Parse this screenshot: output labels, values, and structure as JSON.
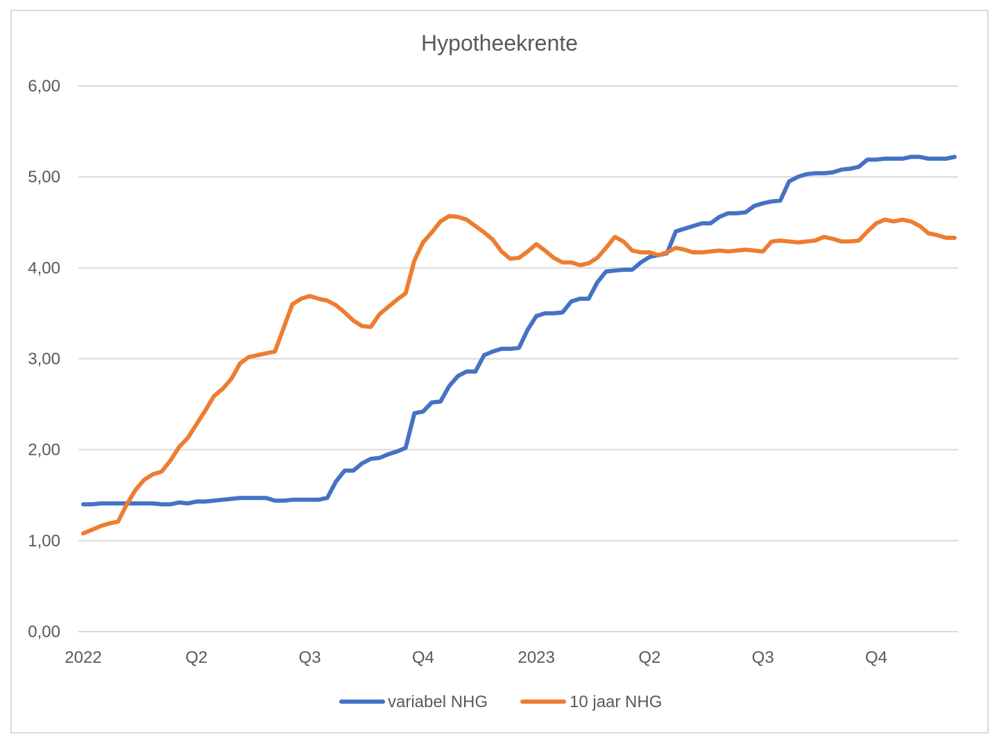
{
  "chart_data": {
    "type": "line",
    "title": "Hypotheekrente",
    "xlabel": "",
    "ylabel": "",
    "ylim": [
      0,
      6
    ],
    "y_ticks": [
      0,
      1,
      2,
      3,
      4,
      5,
      6
    ],
    "y_tick_labels": [
      "0,00",
      "1,00",
      "2,00",
      "3,00",
      "4,00",
      "5,00",
      "6,00"
    ],
    "x_tick_labels": [
      {
        "label": "2022",
        "index": 0
      },
      {
        "label": "Q2",
        "index": 13
      },
      {
        "label": "Q3",
        "index": 26
      },
      {
        "label": "Q4",
        "index": 39
      },
      {
        "label": "2023",
        "index": 52
      },
      {
        "label": "Q2",
        "index": 65
      },
      {
        "label": "Q3",
        "index": 78
      },
      {
        "label": "Q4",
        "index": 91
      }
    ],
    "x_count": 101,
    "grid": true,
    "legend_position": "bottom",
    "series": [
      {
        "name": "variabel NHG",
        "color": "#4472C4",
        "values": [
          1.4,
          1.4,
          1.41,
          1.41,
          1.41,
          1.41,
          1.41,
          1.41,
          1.41,
          1.4,
          1.4,
          1.42,
          1.41,
          1.43,
          1.43,
          1.44,
          1.45,
          1.46,
          1.47,
          1.47,
          1.47,
          1.47,
          1.44,
          1.44,
          1.45,
          1.45,
          1.45,
          1.45,
          1.47,
          1.65,
          1.77,
          1.77,
          1.85,
          1.9,
          1.91,
          1.95,
          1.98,
          2.02,
          2.4,
          2.42,
          2.52,
          2.53,
          2.7,
          2.81,
          2.86,
          2.86,
          3.04,
          3.08,
          3.11,
          3.11,
          3.12,
          3.32,
          3.47,
          3.5,
          3.5,
          3.51,
          3.63,
          3.66,
          3.66,
          3.84,
          3.96,
          3.97,
          3.98,
          3.98,
          4.06,
          4.12,
          4.14,
          4.16,
          4.4,
          4.43,
          4.46,
          4.49,
          4.49,
          4.56,
          4.6,
          4.6,
          4.61,
          4.68,
          4.71,
          4.73,
          4.74,
          4.95,
          5.0,
          5.03,
          5.04,
          5.04,
          5.05,
          5.08,
          5.09,
          5.11,
          5.19,
          5.19,
          5.2,
          5.2,
          5.2,
          5.22,
          5.22,
          5.2,
          5.2,
          5.2,
          5.22
        ]
      },
      {
        "name": "10 jaar NHG",
        "color": "#ED7D31",
        "values": [
          1.08,
          1.12,
          1.16,
          1.19,
          1.21,
          1.4,
          1.56,
          1.67,
          1.73,
          1.76,
          1.88,
          2.03,
          2.13,
          2.28,
          2.43,
          2.59,
          2.67,
          2.78,
          2.95,
          3.02,
          3.04,
          3.06,
          3.08,
          3.34,
          3.6,
          3.66,
          3.69,
          3.66,
          3.64,
          3.59,
          3.51,
          3.42,
          3.36,
          3.35,
          3.49,
          3.57,
          3.65,
          3.72,
          4.08,
          4.28,
          4.39,
          4.51,
          4.57,
          4.56,
          4.53,
          4.46,
          4.39,
          4.31,
          4.18,
          4.1,
          4.11,
          4.18,
          4.26,
          4.19,
          4.11,
          4.06,
          4.06,
          4.03,
          4.05,
          4.11,
          4.22,
          4.34,
          4.29,
          4.19,
          4.17,
          4.17,
          4.14,
          4.17,
          4.22,
          4.2,
          4.17,
          4.17,
          4.18,
          4.19,
          4.18,
          4.19,
          4.2,
          4.19,
          4.18,
          4.29,
          4.3,
          4.29,
          4.28,
          4.29,
          4.3,
          4.34,
          4.32,
          4.29,
          4.29,
          4.3,
          4.4,
          4.49,
          4.53,
          4.51,
          4.53,
          4.51,
          4.46,
          4.38,
          4.36,
          4.33,
          4.33
        ]
      }
    ]
  }
}
